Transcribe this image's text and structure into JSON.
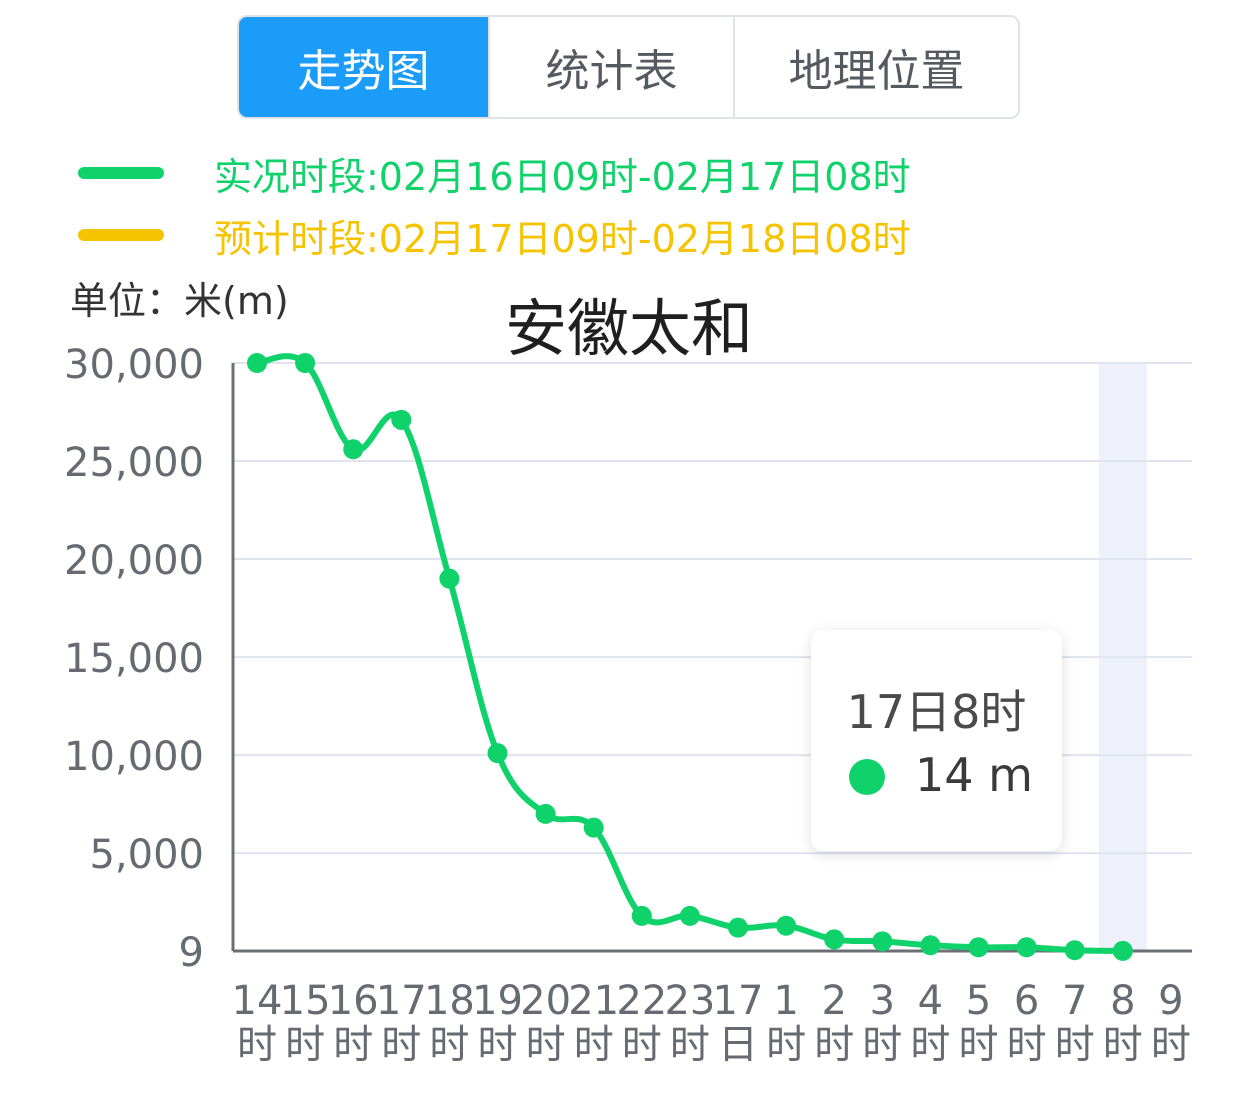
{
  "tabs": [
    {
      "label": "走势图",
      "active": true
    },
    {
      "label": "统计表",
      "active": false
    },
    {
      "label": "地理位置",
      "active": false
    }
  ],
  "legend": [
    {
      "text": "实况时段:02月16日09时-02月17日08时",
      "color": "#0fd26b"
    },
    {
      "text": "预计时段:02月17日09时-02月18日08时",
      "color": "#f5c300"
    }
  ],
  "unit_label": "单位：米(m)",
  "tooltip": {
    "time": "17日8时",
    "value": "14 m"
  },
  "chart_data": {
    "type": "line",
    "title": "安徽太和",
    "ylabel": "单位：米(m)",
    "y_ticks": [
      "9",
      "5,000",
      "10,000",
      "15,000",
      "20,000",
      "25,000",
      "30,000"
    ],
    "y_tick_values": [
      9,
      5000,
      10000,
      15000,
      20000,
      25000,
      30000
    ],
    "ylim": [
      9,
      30000
    ],
    "x_labels": [
      [
        "14",
        "时"
      ],
      [
        "15",
        "时"
      ],
      [
        "16",
        "时"
      ],
      [
        "17",
        "时"
      ],
      [
        "18",
        "时"
      ],
      [
        "19",
        "时"
      ],
      [
        "20",
        "时"
      ],
      [
        "21",
        "时"
      ],
      [
        "22",
        "时"
      ],
      [
        "23",
        "时"
      ],
      [
        "17",
        "日"
      ],
      [
        "1",
        "时"
      ],
      [
        "2",
        "时"
      ],
      [
        "3",
        "时"
      ],
      [
        "4",
        "时"
      ],
      [
        "5",
        "时"
      ],
      [
        "6",
        "时"
      ],
      [
        "7",
        "时"
      ],
      [
        "8",
        "时"
      ],
      [
        "9",
        "时"
      ]
    ],
    "series": [
      {
        "color": "#0fd26b",
        "values": [
          30000,
          30000,
          25600,
          27100,
          19000,
          10100,
          7000,
          6300,
          1800,
          1800,
          1200,
          1300,
          600,
          500,
          300,
          200,
          200,
          50,
          14
        ]
      }
    ],
    "highlight_index": 18,
    "grid": true
  }
}
